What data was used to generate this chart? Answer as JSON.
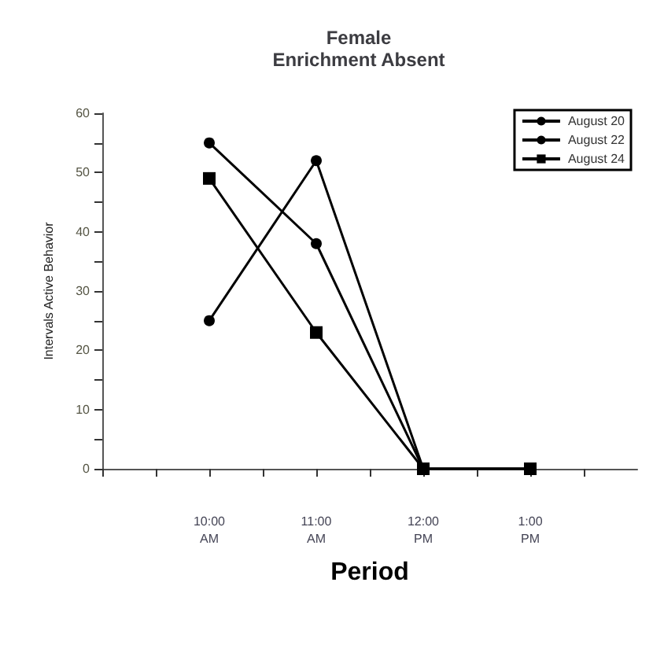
{
  "chart_data": {
    "type": "line",
    "title": "Female\nEnrichment Absent",
    "xlabel": "Period",
    "ylabel": "Intervals Active Behavior",
    "x": [
      10,
      11,
      12,
      13
    ],
    "series": [
      {
        "name": "August 20",
        "color": "#000000",
        "marker": "circle",
        "values": [
          55,
          38,
          0,
          0
        ]
      },
      {
        "name": "August 22",
        "color": "#000000",
        "marker": "circle",
        "values": [
          25,
          52,
          0,
          0
        ]
      },
      {
        "name": "August 24",
        "color": "#000000",
        "marker": "square",
        "values": [
          49,
          23,
          0,
          0
        ]
      }
    ],
    "xlim": [
      9,
      14
    ],
    "xticks": [
      {
        "value": 9,
        "label": null
      },
      {
        "value": 9.5,
        "label": null
      },
      {
        "value": 10,
        "label": "10:00\nAM"
      },
      {
        "value": 10.5,
        "label": null
      },
      {
        "value": 11,
        "label": "11:00\nAM"
      },
      {
        "value": 11.5,
        "label": null
      },
      {
        "value": 12,
        "label": "12:00\nPM"
      },
      {
        "value": 12.5,
        "label": null
      },
      {
        "value": 13,
        "label": "1:00\nPM"
      },
      {
        "value": 13.5,
        "label": null
      }
    ],
    "ylim": [
      0,
      60
    ],
    "yticks": [
      0,
      {
        "value": 5,
        "label": null
      },
      10,
      {
        "value": 15,
        "label": null
      },
      20,
      {
        "value": 25,
        "label": null
      },
      30,
      {
        "value": 35,
        "label": null
      },
      40,
      {
        "value": 45,
        "label": null
      },
      50,
      {
        "value": 55,
        "label": null
      },
      60
    ],
    "legend": "top right",
    "grid": false,
    "line_style": "solid"
  }
}
